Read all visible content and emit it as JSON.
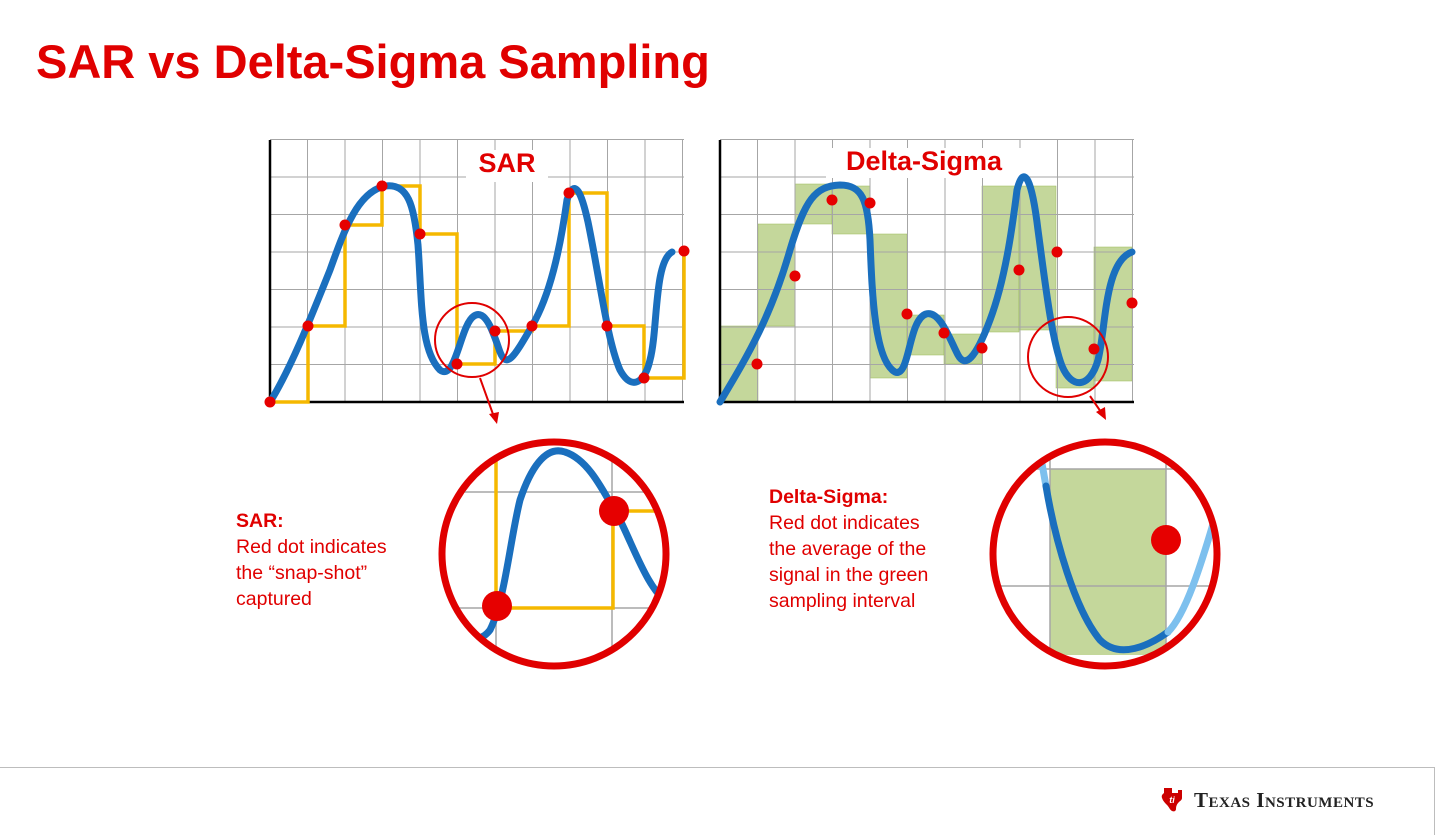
{
  "slide": {
    "title": "SAR vs Delta-Sigma Sampling"
  },
  "panels": {
    "sar": {
      "label": "SAR"
    },
    "delta_sigma": {
      "label": "Delta-Sigma"
    }
  },
  "callouts": {
    "sar": {
      "heading": "SAR:",
      "lines": [
        "Red dot indicates",
        "the “snap-shot”",
        "captured"
      ]
    },
    "delta_sigma": {
      "heading": "Delta-Sigma:",
      "lines": [
        "Red dot indicates",
        "the average of the",
        "signal in the green",
        "sampling interval"
      ]
    }
  },
  "footer": {
    "logo_text": "Texas Instruments"
  },
  "colors": {
    "title": "#e00000",
    "signal": "#1a6fbe",
    "signal_light": "#7dc0ee",
    "sar_steps": "#f5b800",
    "sample_dot": "#e60000",
    "interval_fill": "#c4d79b",
    "grid": "#a6a6a6"
  },
  "icons": {
    "logo": "texas-instruments-logo-icon"
  }
}
